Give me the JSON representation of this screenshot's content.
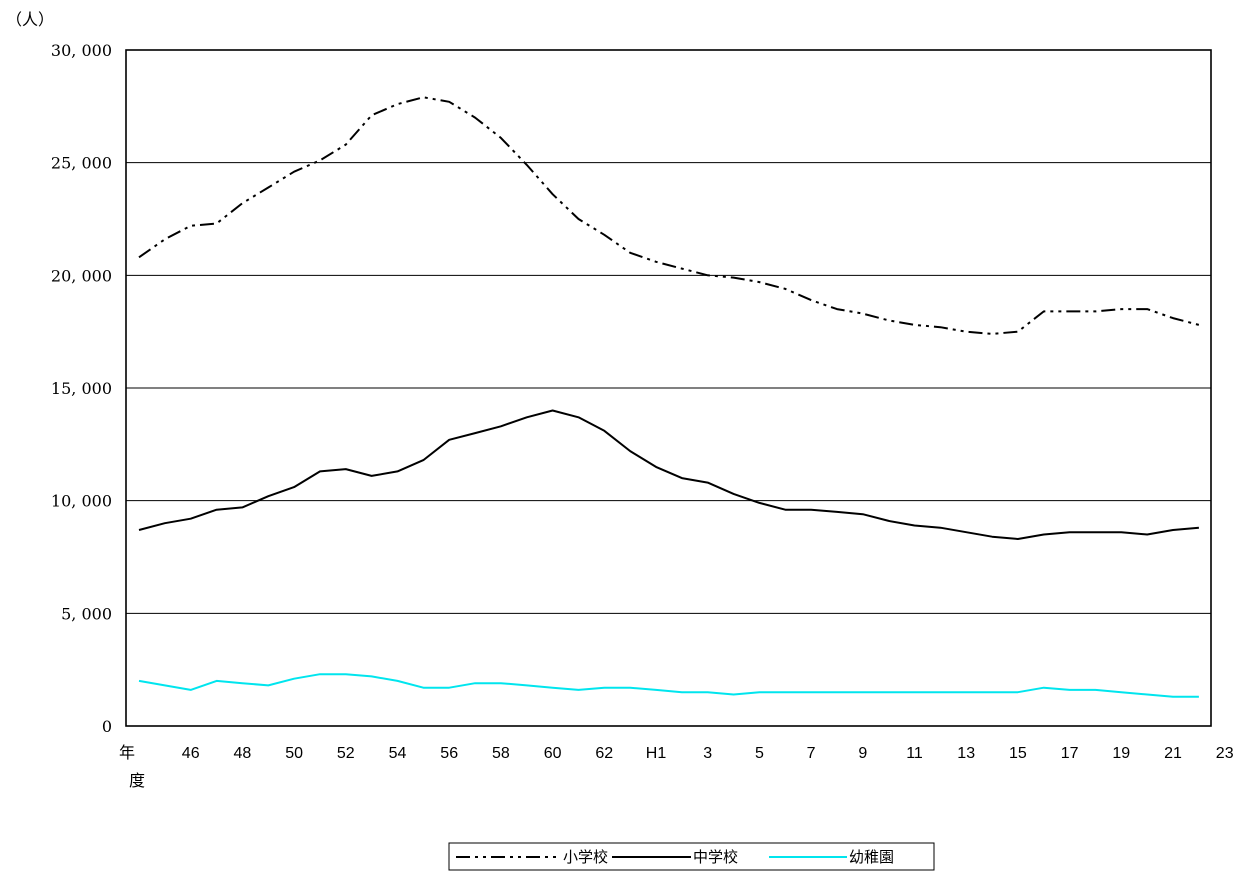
{
  "chart_data": {
    "type": "line",
    "unit_label": "（人）",
    "x_axis_label_chars": [
      "年",
      "度"
    ],
    "x": [
      "44",
      "45",
      "46",
      "47",
      "48",
      "49",
      "50",
      "51",
      "52",
      "53",
      "54",
      "55",
      "56",
      "57",
      "58",
      "59",
      "60",
      "61",
      "62",
      "63",
      "H1",
      "2",
      "3",
      "4",
      "5",
      "6",
      "7",
      "8",
      "9",
      "10",
      "11",
      "12",
      "13",
      "14",
      "15",
      "16",
      "17",
      "18",
      "19",
      "20",
      "21",
      "22"
    ],
    "x_tick_labels": [
      "46",
      "48",
      "50",
      "52",
      "54",
      "56",
      "58",
      "60",
      "62",
      "H1",
      "3",
      "5",
      "7",
      "9",
      "11",
      "13",
      "15",
      "17",
      "19",
      "21",
      "23"
    ],
    "ylim": [
      0,
      30000
    ],
    "y_ticks": [
      0,
      5000,
      10000,
      15000,
      20000,
      25000,
      30000
    ],
    "y_tick_labels": [
      "0",
      "5, 000",
      "10, 000",
      "15, 000",
      "20, 000",
      "25, 000",
      "30, 000"
    ],
    "grid": true,
    "legend_position": "bottom-center",
    "series": [
      {
        "name": "小学校",
        "color": "#000000",
        "style": "dash-dot-dot",
        "values": [
          20800,
          21600,
          22200,
          22300,
          23200,
          23900,
          24600,
          25100,
          25800,
          27100,
          27600,
          27900,
          27700,
          27000,
          26100,
          24900,
          23600,
          22500,
          21800,
          21000,
          20600,
          20300,
          20000,
          19900,
          19700,
          19400,
          18900,
          18500,
          18300,
          18000,
          17800,
          17700,
          17500,
          17400,
          17500,
          18400,
          18400,
          18400,
          18500,
          18500,
          18100,
          17800
        ]
      },
      {
        "name": "中学校",
        "color": "#000000",
        "style": "solid",
        "values": [
          8700,
          9000,
          9200,
          9600,
          9700,
          10200,
          10600,
          11300,
          11400,
          11100,
          11300,
          11800,
          12700,
          13000,
          13300,
          13700,
          14000,
          13700,
          13100,
          12200,
          11500,
          11000,
          10800,
          10300,
          9900,
          9600,
          9600,
          9500,
          9400,
          9100,
          8900,
          8800,
          8600,
          8400,
          8300,
          8500,
          8600,
          8600,
          8600,
          8500,
          8700,
          8800
        ]
      },
      {
        "name": "幼稚園",
        "color": "#00E5EE",
        "style": "solid",
        "values": [
          2000,
          1800,
          1600,
          2000,
          1900,
          1800,
          2100,
          2300,
          2300,
          2200,
          2000,
          1700,
          1700,
          1900,
          1900,
          1800,
          1700,
          1600,
          1700,
          1700,
          1600,
          1500,
          1500,
          1400,
          1500,
          1500,
          1500,
          1500,
          1500,
          1500,
          1500,
          1500,
          1500,
          1500,
          1500,
          1700,
          1600,
          1600,
          1500,
          1400,
          1300,
          1300
        ]
      }
    ]
  }
}
